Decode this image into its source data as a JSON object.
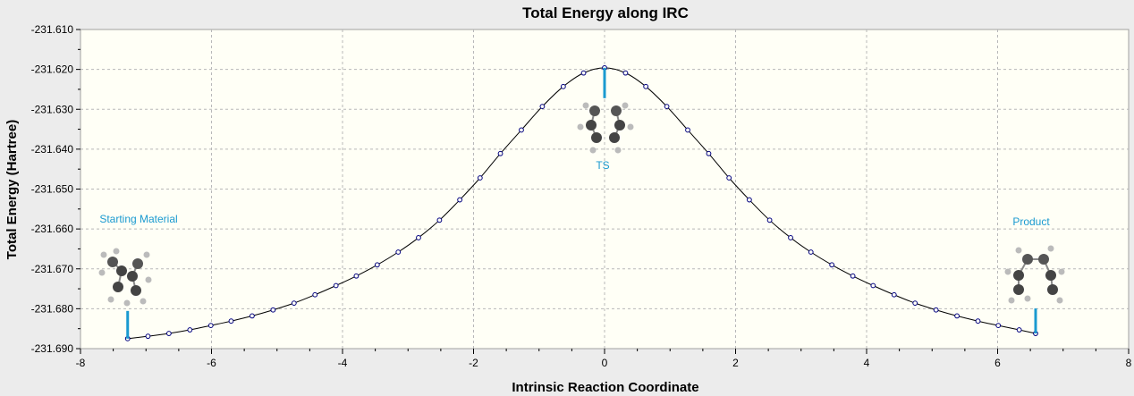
{
  "chart_data": {
    "type": "line",
    "title": "Total Energy along IRC",
    "xlabel": "Intrinsic Reaction Coordinate",
    "ylabel": "Total Energy (Hartree)",
    "xlim": [
      -8,
      8
    ],
    "ylim": [
      -231.69,
      -231.61
    ],
    "xticks": [
      -8,
      -6,
      -4,
      -2,
      0,
      2,
      4,
      6,
      8
    ],
    "yticks": [
      -231.61,
      -231.62,
      -231.63,
      -231.64,
      -231.65,
      -231.66,
      -231.67,
      -231.68,
      -231.69
    ],
    "xtick_labels": [
      "-8",
      "-6",
      "-4",
      "-2",
      "0",
      "2",
      "4",
      "6",
      "8"
    ],
    "ytick_labels": [
      "-231.610",
      "-231.620",
      "-231.630",
      "-231.640",
      "-231.650",
      "-231.660",
      "-231.670",
      "-231.680",
      "-231.690"
    ],
    "grid": true,
    "series": [
      {
        "name": "IRC",
        "color": "#000080",
        "x": [
          -7.28,
          -6.97,
          -6.65,
          -6.33,
          -6.01,
          -5.7,
          -5.38,
          -5.06,
          -4.74,
          -4.42,
          -4.1,
          -3.79,
          -3.47,
          -3.15,
          -2.84,
          -2.52,
          -2.21,
          -1.9,
          -1.59,
          -1.27,
          -0.95,
          -0.63,
          -0.32,
          0.0,
          0.32,
          0.63,
          0.95,
          1.27,
          1.59,
          1.9,
          2.21,
          2.52,
          2.84,
          3.15,
          3.47,
          3.79,
          4.1,
          4.42,
          4.74,
          5.06,
          5.38,
          5.7,
          6.01,
          6.33,
          6.58
        ],
        "y": [
          -231.6875,
          -231.6869,
          -231.6862,
          -231.6853,
          -231.6842,
          -231.6831,
          -231.6818,
          -231.6803,
          -231.6786,
          -231.6765,
          -231.6742,
          -231.6718,
          -231.669,
          -231.6658,
          -231.6622,
          -231.6578,
          -231.6527,
          -231.6472,
          -231.6411,
          -231.6352,
          -231.6293,
          -231.6243,
          -231.6209,
          -231.6196,
          -231.6209,
          -231.6243,
          -231.6293,
          -231.6352,
          -231.6411,
          -231.6472,
          -231.6527,
          -231.6578,
          -231.6622,
          -231.6658,
          -231.669,
          -231.6718,
          -231.6742,
          -231.6765,
          -231.6786,
          -231.6803,
          -231.6818,
          -231.6831,
          -231.6842,
          -231.6853,
          -231.6862
        ]
      }
    ],
    "markers": [
      {
        "label": "Starting Material",
        "x": -7.28,
        "y": -231.6875
      },
      {
        "label": "TS",
        "x": 0.0,
        "y": -231.6196
      },
      {
        "label": "Product",
        "x": 6.58,
        "y": -231.6862
      }
    ],
    "marker_color": "#1a9ad0"
  }
}
